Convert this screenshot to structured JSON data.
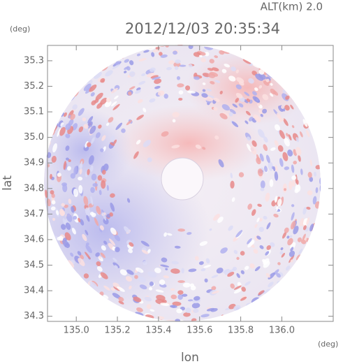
{
  "chart_data": {
    "type": "radar-map",
    "title": "2012/12/03 20:35:34",
    "subtitle": "ALT(km)  2.0",
    "xlabel": "lon",
    "ylabel": "lat",
    "x_unit": "(deg)",
    "y_unit": "(deg)",
    "xlim": [
      134.86,
      136.25
    ],
    "ylim": [
      34.28,
      35.36
    ],
    "xticks": [
      {
        "value": 135.0,
        "label": "135.0"
      },
      135.2,
      135.4,
      135.6,
      135.8,
      {
        "value": 136.0,
        "label": "136.0"
      }
    ],
    "yticks": [
      34.3,
      34.4,
      34.5,
      34.6,
      34.7,
      34.8,
      34.9,
      {
        "value": 35.0,
        "label": "35.0"
      },
      35.1,
      35.2,
      35.3
    ]
  }
}
